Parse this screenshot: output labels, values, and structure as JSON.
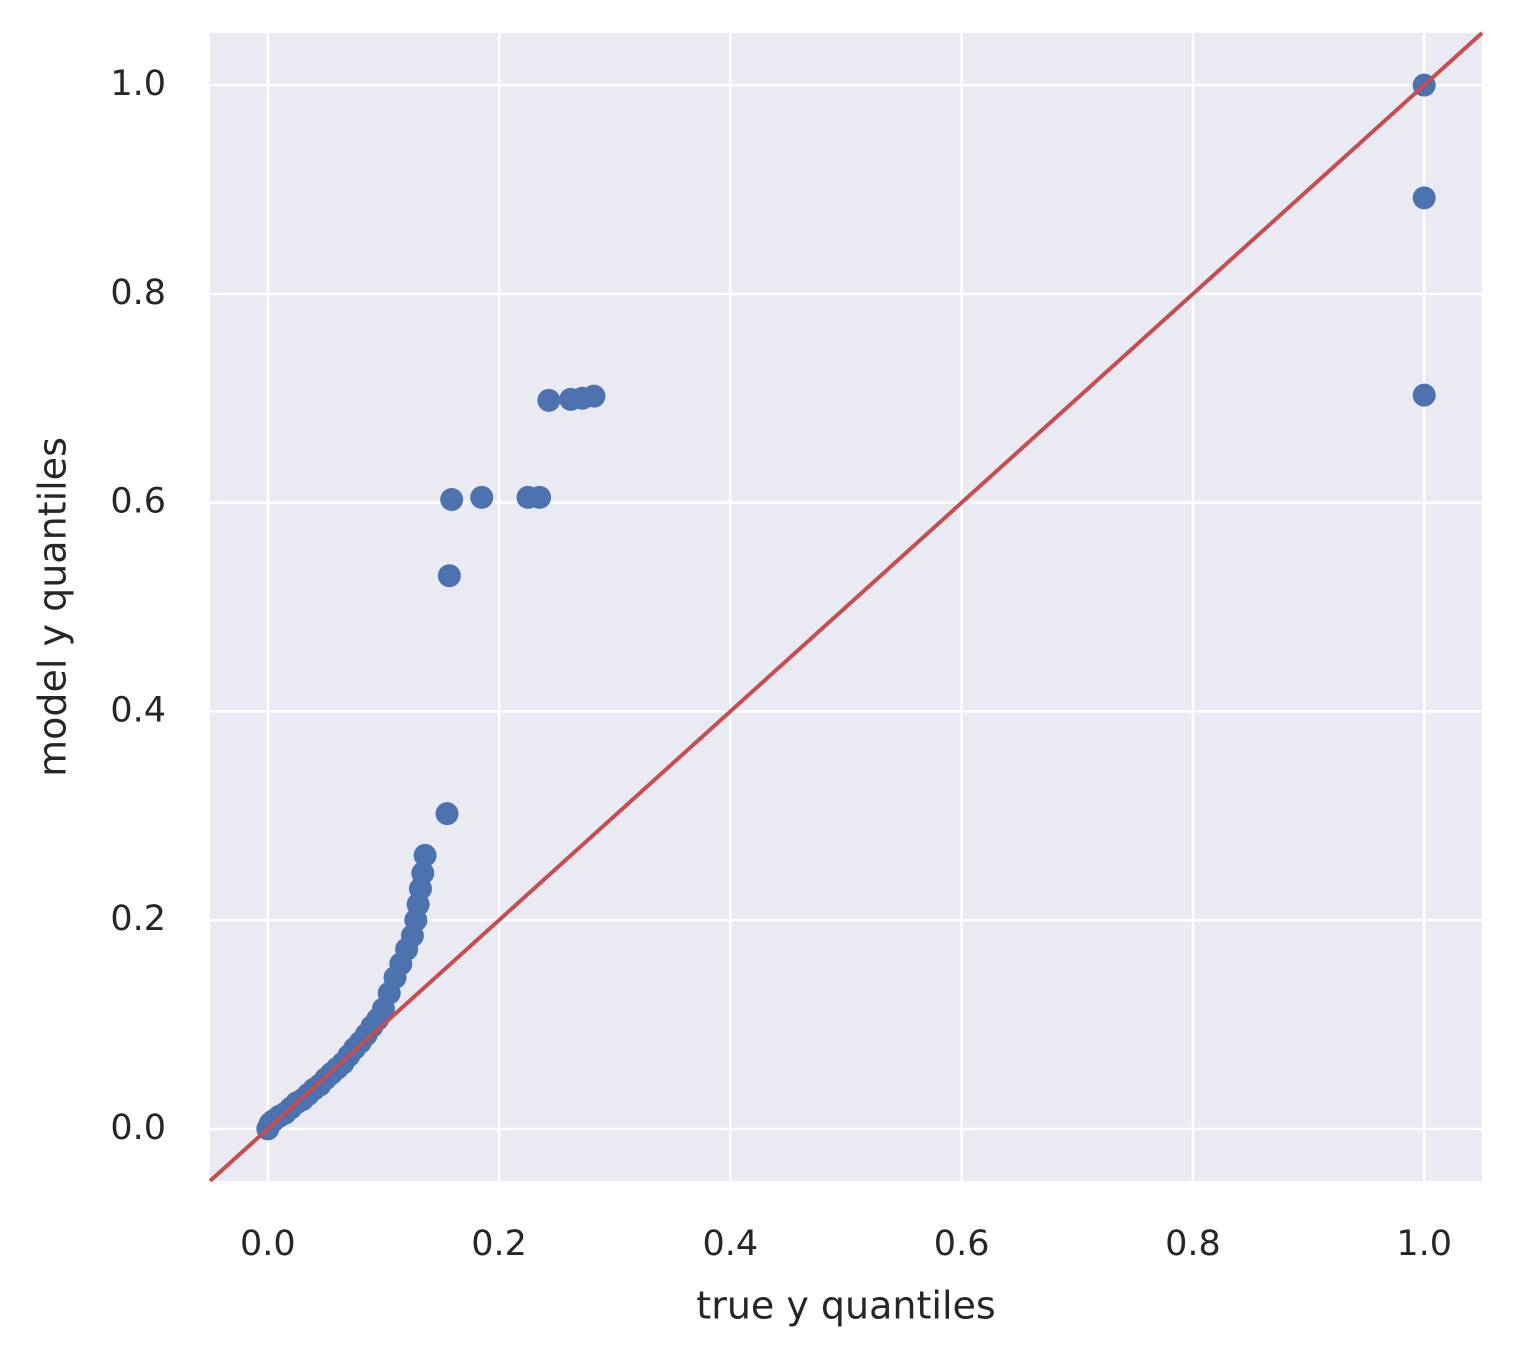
{
  "chart_data": {
    "type": "scatter",
    "xlabel": "true y quantiles",
    "ylabel": "model y quantiles",
    "xlim": [
      -0.05,
      1.05
    ],
    "ylim": [
      -0.05,
      1.05
    ],
    "xticks": [
      {
        "value": 0,
        "label": "0.0"
      },
      0.2,
      0.4,
      0.6,
      0.8,
      {
        "value": 1,
        "label": "1.0"
      }
    ],
    "yticks": [
      {
        "value": 0,
        "label": "0.0"
      },
      0.2,
      0.4,
      0.6,
      0.8,
      {
        "value": 1,
        "label": "1.0"
      }
    ],
    "grid": true,
    "color": "#4c72b0",
    "x": [
      0.0,
      0.002,
      0.005,
      0.01,
      0.015,
      0.02,
      0.025,
      0.03,
      0.035,
      0.04,
      0.045,
      0.05,
      0.055,
      0.06,
      0.065,
      0.07,
      0.075,
      0.08,
      0.085,
      0.09,
      0.095,
      0.1,
      0.105,
      0.11,
      0.115,
      0.12,
      0.125,
      0.128,
      0.13,
      0.132,
      0.134,
      0.136,
      0.155,
      0.157,
      0.159,
      0.185,
      0.225,
      0.235,
      0.243,
      0.262,
      0.272,
      0.282,
      1.0,
      1.0,
      1.0
    ],
    "y": [
      0.0,
      0.005,
      0.008,
      0.012,
      0.015,
      0.02,
      0.025,
      0.028,
      0.033,
      0.038,
      0.042,
      0.048,
      0.053,
      0.058,
      0.063,
      0.07,
      0.077,
      0.083,
      0.09,
      0.098,
      0.105,
      0.115,
      0.13,
      0.145,
      0.158,
      0.172,
      0.185,
      0.2,
      0.215,
      0.23,
      0.245,
      0.262,
      0.302,
      0.53,
      0.603,
      0.605,
      0.605,
      0.605,
      0.698,
      0.699,
      0.7,
      0.702,
      0.703,
      0.892,
      1.0
    ],
    "reference_line": {
      "color": "#c44e52",
      "x": [
        -0.05,
        1.05
      ],
      "y": [
        -0.05,
        1.05
      ]
    }
  }
}
